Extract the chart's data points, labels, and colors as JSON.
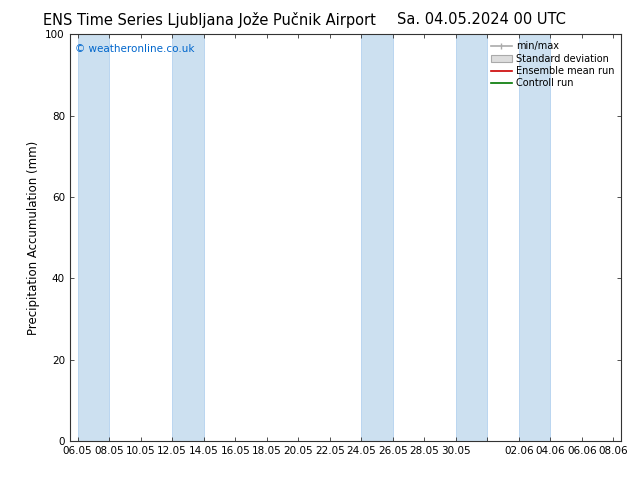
{
  "title_left": "ENS Time Series Ljubljana Jože Pučnik Airport",
  "title_right": "Sa. 04.05.2024 00 UTC",
  "ylabel": "Precipitation Accumulation (mm)",
  "watermark": "© weatheronline.co.uk",
  "watermark_color": "#0066cc",
  "ylim": [
    0,
    100
  ],
  "yticks": [
    0,
    20,
    40,
    60,
    80,
    100
  ],
  "bg_color": "#ffffff",
  "plot_bg_color": "#ffffff",
  "band_color": "#cce0f0",
  "band_edge_color": "#aaccee",
  "legend_labels": [
    "min/max",
    "Standard deviation",
    "Ensemble mean run",
    "Controll run"
  ],
  "xtick_labels": [
    "06.05",
    "08.05",
    "10.05",
    "12.05",
    "14.05",
    "16.05",
    "18.05",
    "20.05",
    "22.05",
    "24.05",
    "26.05",
    "28.05",
    "30.05",
    "",
    "02.06",
    "04.06",
    "06.06",
    "08.06"
  ],
  "xtick_positions": [
    0,
    2,
    4,
    6,
    8,
    10,
    12,
    14,
    16,
    18,
    20,
    22,
    24,
    26,
    28,
    30,
    32,
    34
  ],
  "band_positions": [
    [
      0,
      2
    ],
    [
      6,
      8
    ],
    [
      18,
      20
    ],
    [
      24,
      26
    ],
    [
      28,
      30
    ]
  ],
  "title_fontsize": 10.5,
  "axis_fontsize": 8.5,
  "tick_fontsize": 7.5
}
